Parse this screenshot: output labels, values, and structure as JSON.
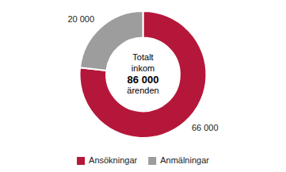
{
  "chart_data": {
    "type": "donut",
    "categories": [
      "Ansökningar",
      "Anmälningar"
    ],
    "values": [
      66000,
      20000
    ],
    "value_labels": [
      "66 000",
      "20 000"
    ],
    "colors": [
      "#b5173a",
      "#9d9d9d"
    ],
    "data_labels": true,
    "legend": "bottom",
    "annotations": [
      "Totalt",
      "inkom",
      "86 000",
      "ärenden"
    ]
  }
}
